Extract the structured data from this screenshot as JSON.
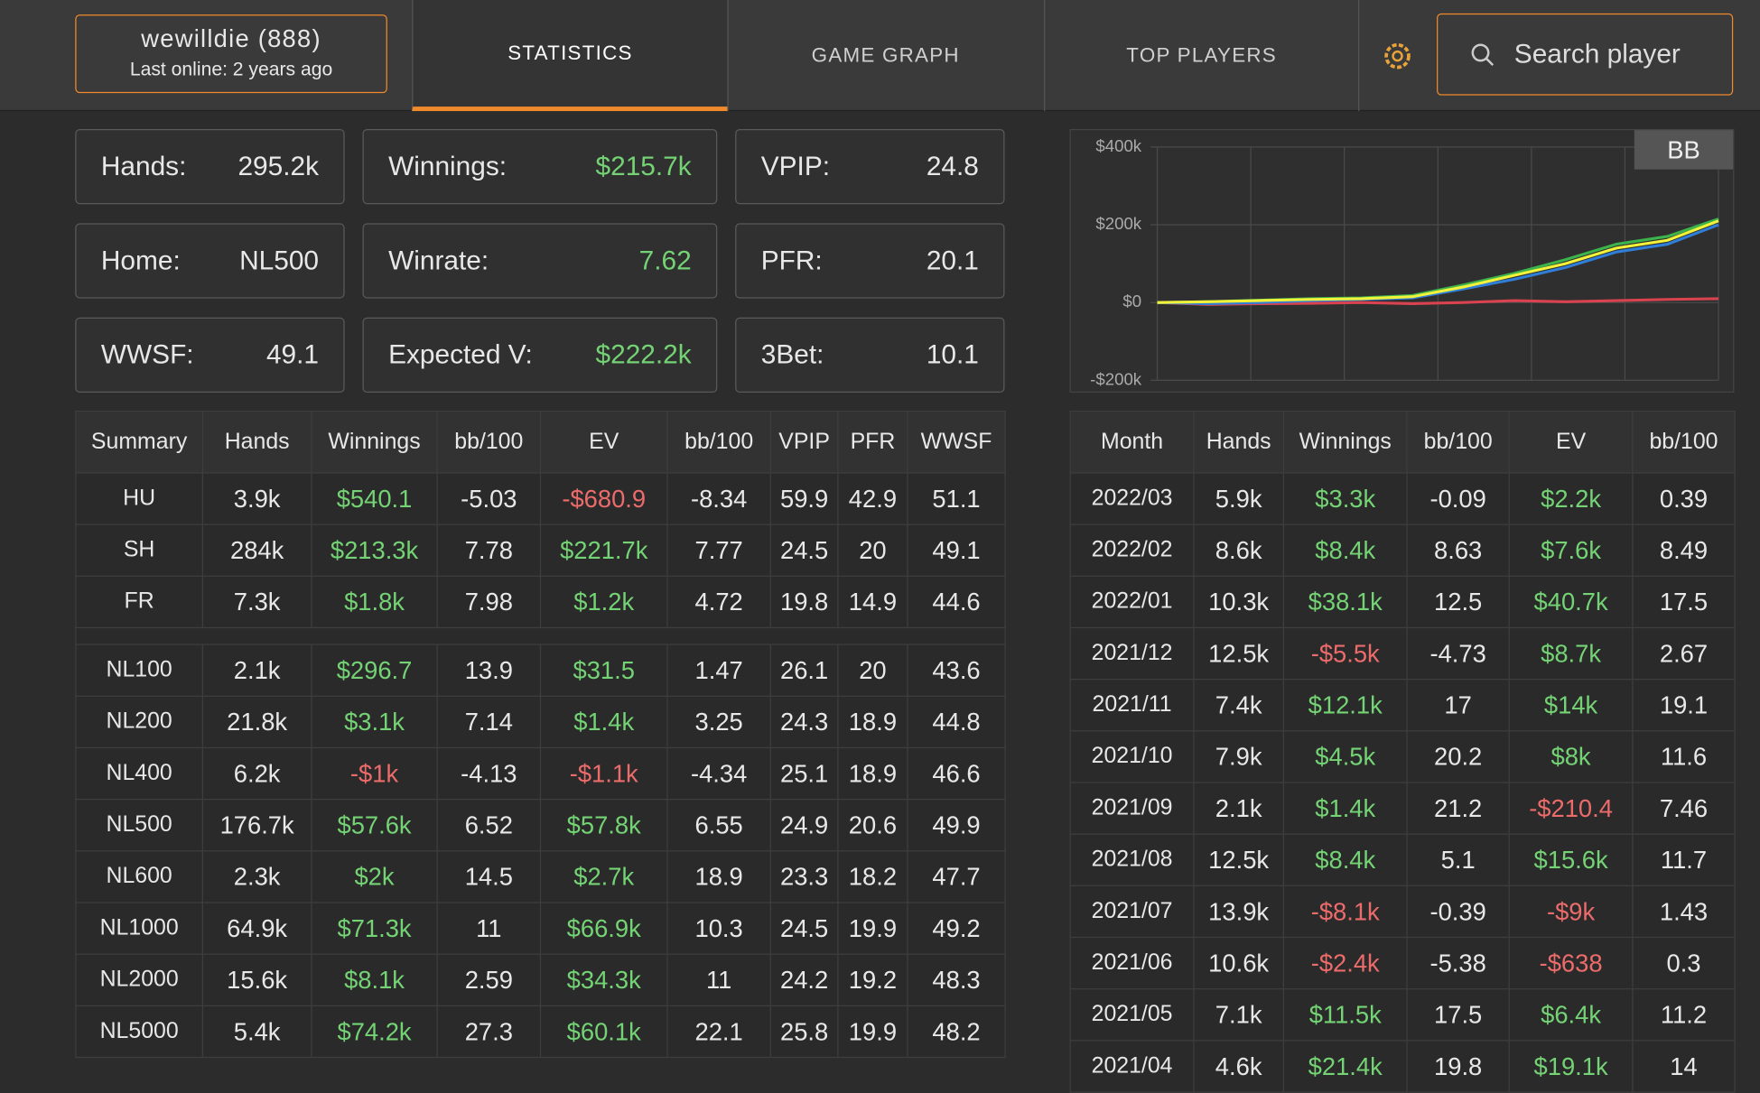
{
  "header": {
    "user": {
      "name": "wewilldie (888)",
      "status": "Last online: 2 years ago"
    },
    "tabs": [
      "STATISTICS",
      "GAME GRAPH",
      "TOP PLAYERS"
    ],
    "search": "Search player"
  },
  "stats": [
    {
      "label": "Hands:",
      "value": "295.2k"
    },
    {
      "label": "Winnings:",
      "value": "$215.7k",
      "color": "#74d374"
    },
    {
      "label": "VPIP:",
      "value": "24.8"
    },
    {
      "label": "Home:",
      "value": "NL500"
    },
    {
      "label": "Winrate:",
      "value": "7.62",
      "color": "#74d374"
    },
    {
      "label": "PFR:",
      "value": "20.1"
    },
    {
      "label": "WWSF:",
      "value": "49.1"
    },
    {
      "label": "Expected V:",
      "value": "$222.2k",
      "color": "#74d374"
    },
    {
      "label": "3Bet:",
      "value": "10.1"
    }
  ],
  "summary": {
    "columns": [
      "Summary",
      "Hands",
      "Winnings",
      "bb/100",
      "EV",
      "bb/100",
      "VPIP",
      "PFR",
      "WWSF"
    ],
    "groups": [
      [
        [
          "HU",
          "3.9k",
          "$540.1",
          "-5.03",
          "-$680.9",
          "-8.34",
          "59.9",
          "42.9",
          "51.1"
        ],
        [
          "SH",
          "284k",
          "$213.3k",
          "7.78",
          "$221.7k",
          "7.77",
          "24.5",
          "20",
          "49.1"
        ],
        [
          "FR",
          "7.3k",
          "$1.8k",
          "7.98",
          "$1.2k",
          "4.72",
          "19.8",
          "14.9",
          "44.6"
        ]
      ],
      [
        [
          "NL100",
          "2.1k",
          "$296.7",
          "13.9",
          "$31.5",
          "1.47",
          "26.1",
          "20",
          "43.6"
        ],
        [
          "NL200",
          "21.8k",
          "$3.1k",
          "7.14",
          "$1.4k",
          "3.25",
          "24.3",
          "18.9",
          "44.8"
        ],
        [
          "NL400",
          "6.2k",
          "-$1k",
          "-4.13",
          "-$1.1k",
          "-4.34",
          "25.1",
          "18.9",
          "46.6"
        ],
        [
          "NL500",
          "176.7k",
          "$57.6k",
          "6.52",
          "$57.8k",
          "6.55",
          "24.9",
          "20.6",
          "49.9"
        ],
        [
          "NL600",
          "2.3k",
          "$2k",
          "14.5",
          "$2.7k",
          "18.9",
          "23.3",
          "18.2",
          "47.7"
        ],
        [
          "NL1000",
          "64.9k",
          "$71.3k",
          "11",
          "$66.9k",
          "10.3",
          "24.5",
          "19.9",
          "49.2"
        ],
        [
          "NL2000",
          "15.6k",
          "$8.1k",
          "2.59",
          "$34.3k",
          "11",
          "24.2",
          "19.2",
          "48.3"
        ],
        [
          "NL5000",
          "5.4k",
          "$74.2k",
          "27.3",
          "$60.1k",
          "22.1",
          "25.8",
          "19.9",
          "48.2"
        ]
      ]
    ]
  },
  "chart_data": {
    "type": "line",
    "toggle": "BB",
    "ylim": [
      -200000,
      400000
    ],
    "yticks": [
      {
        "value": 400000,
        "label": "$400k"
      },
      {
        "value": 200000,
        "label": "$200k"
      },
      {
        "value": 0,
        "label": "$0"
      },
      {
        "value": -200000,
        "label": "-$200k"
      }
    ],
    "series": [
      {
        "color": "#d9434f",
        "values": [
          0,
          -5000,
          -3000,
          -2000,
          0,
          -3000,
          0,
          5000,
          2000,
          5000,
          8000,
          10000
        ]
      },
      {
        "color": "#2f7ed8",
        "values": [
          0,
          -3000,
          0,
          5000,
          8000,
          12000,
          35000,
          60000,
          90000,
          130000,
          150000,
          200000
        ]
      },
      {
        "color": "#3cb44b",
        "values": [
          0,
          2000,
          6000,
          10000,
          12000,
          18000,
          45000,
          75000,
          110000,
          150000,
          170000,
          215000
        ]
      },
      {
        "color": "#f2f23a",
        "values": [
          0,
          2000,
          5000,
          8000,
          10000,
          15000,
          40000,
          70000,
          100000,
          140000,
          160000,
          210000
        ]
      }
    ]
  },
  "monthly": {
    "columns": [
      "Month",
      "Hands",
      "Winnings",
      "bb/100",
      "EV",
      "bb/100"
    ],
    "rows": [
      [
        "2022/03",
        "5.9k",
        "$3.3k",
        "-0.09",
        "$2.2k",
        "0.39"
      ],
      [
        "2022/02",
        "8.6k",
        "$8.4k",
        "8.63",
        "$7.6k",
        "8.49"
      ],
      [
        "2022/01",
        "10.3k",
        "$38.1k",
        "12.5",
        "$40.7k",
        "17.5"
      ],
      [
        "2021/12",
        "12.5k",
        "-$5.5k",
        "-4.73",
        "$8.7k",
        "2.67"
      ],
      [
        "2021/11",
        "7.4k",
        "$12.1k",
        "17",
        "$14k",
        "19.1"
      ],
      [
        "2021/10",
        "7.9k",
        "$4.5k",
        "20.2",
        "$8k",
        "11.6"
      ],
      [
        "2021/09",
        "2.1k",
        "$1.4k",
        "21.2",
        "-$210.4",
        "7.46"
      ],
      [
        "2021/08",
        "12.5k",
        "$8.4k",
        "5.1",
        "$15.6k",
        "11.7"
      ],
      [
        "2021/07",
        "13.9k",
        "-$8.1k",
        "-0.39",
        "-$9k",
        "1.43"
      ],
      [
        "2021/06",
        "10.6k",
        "-$2.4k",
        "-5.38",
        "-$638",
        "0.3"
      ],
      [
        "2021/05",
        "7.1k",
        "$11.5k",
        "17.5",
        "$6.4k",
        "11.2"
      ],
      [
        "2021/04",
        "4.6k",
        "$21.4k",
        "19.8",
        "$19.1k",
        "14"
      ]
    ]
  }
}
